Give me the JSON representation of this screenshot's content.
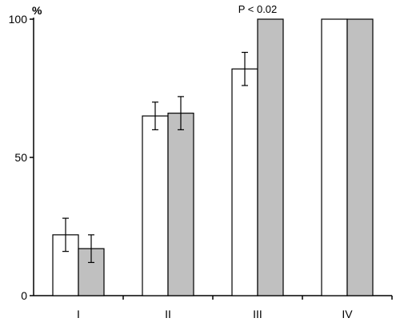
{
  "chart_data": {
    "type": "bar",
    "ylabel": "%",
    "xlabel": "",
    "ylim": [
      0,
      100
    ],
    "yticks": [
      0,
      50,
      100
    ],
    "categories": [
      "I",
      "II",
      "III",
      "IV"
    ],
    "series": [
      {
        "color": "#ffffff",
        "values": [
          22,
          65,
          82,
          100
        ],
        "error": [
          6,
          5,
          6,
          0
        ]
      },
      {
        "color": "#c0c0c0",
        "values": [
          17,
          66,
          100,
          100
        ],
        "error": [
          5,
          6,
          0,
          0
        ]
      }
    ],
    "annotations": [
      {
        "text": "P < 0.02",
        "category_index": 2,
        "y": 100
      }
    ],
    "grid": false,
    "legend": "none"
  }
}
